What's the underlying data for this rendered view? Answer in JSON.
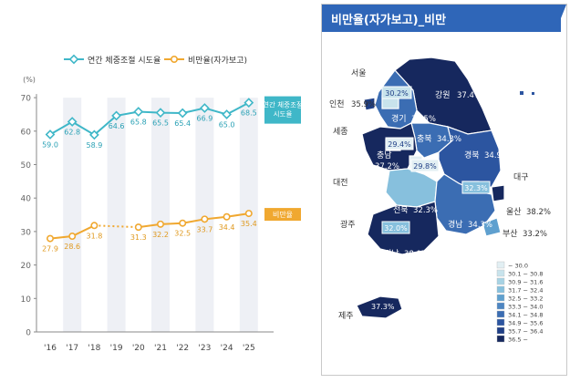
{
  "chart_data": [
    {
      "type": "line",
      "y_unit": "(%)",
      "ylim": [
        0,
        70
      ],
      "yticks": [
        0,
        10,
        20,
        30,
        40,
        50,
        60,
        70
      ],
      "categories": [
        "'16",
        "'17",
        "'18",
        "'19",
        "'20",
        "'21",
        "'22",
        "'23",
        "'24",
        "'25"
      ],
      "shaded_years": [
        "'17",
        "'19",
        "'21",
        "'23",
        "'25"
      ],
      "series": [
        {
          "name": "연간 체중조절 시도율",
          "end_label": "연간 체중조절 시도율",
          "color": "#3fb7c8",
          "values": [
            59.0,
            62.8,
            58.9,
            64.6,
            65.8,
            65.5,
            65.4,
            66.9,
            65.0,
            68.5
          ],
          "labels": [
            "59.0",
            "62.8",
            "58.9",
            "64.6",
            "65.8",
            "65.5",
            "65.4",
            "66.9",
            "65.0",
            "68.5"
          ]
        },
        {
          "name": "비만율(자가보고)",
          "end_label": "비만율",
          "color": "#f0a830",
          "values": [
            27.9,
            28.6,
            31.8,
            null,
            31.3,
            32.2,
            32.5,
            33.7,
            34.4,
            35.4
          ],
          "labels": [
            "27.9",
            "28.6",
            "31.8",
            "",
            "31.3",
            "32.2",
            "32.5",
            "33.7",
            "34.4",
            "35.4"
          ],
          "dotted_gap": [
            "'18",
            "'20"
          ]
        }
      ]
    },
    {
      "type": "choropleth",
      "title": "비만율(자가보고)_비만",
      "regions": [
        {
          "name": "서울",
          "value": "30.2%"
        },
        {
          "name": "인천",
          "value": "35.9%"
        },
        {
          "name": "경기",
          "value": "34.5%"
        },
        {
          "name": "강원",
          "value": "37.4%"
        },
        {
          "name": "세종",
          "value": "29.4%"
        },
        {
          "name": "충북",
          "value": "34.3%"
        },
        {
          "name": "충남",
          "value": "37.2%"
        },
        {
          "name": "대전",
          "value": "29.8%"
        },
        {
          "name": "경북",
          "value": "34.9%"
        },
        {
          "name": "대구",
          "value": "32.3%"
        },
        {
          "name": "전북",
          "value": "32.3%"
        },
        {
          "name": "광주",
          "value": "32.0%"
        },
        {
          "name": "경남",
          "value": "34.3%"
        },
        {
          "name": "울산",
          "value": "38.2%"
        },
        {
          "name": "부산",
          "value": "33.2%"
        },
        {
          "name": "전남",
          "value": "38.0%"
        },
        {
          "name": "제주",
          "value": "37.3%"
        }
      ],
      "legend": [
        {
          "label": "~ 30.0",
          "color": "#e2eff3"
        },
        {
          "label": "30.1 ~ 30.8",
          "color": "#c8e3ec"
        },
        {
          "label": "30.9 ~ 31.6",
          "color": "#a7d3e4"
        },
        {
          "label": "31.7 ~ 32.4",
          "color": "#87c0dd"
        },
        {
          "label": "32.5 ~ 33.2",
          "color": "#5fa0cf"
        },
        {
          "label": "33.3 ~ 34.0",
          "color": "#4d86c2"
        },
        {
          "label": "34.1 ~ 34.8",
          "color": "#3b6db3"
        },
        {
          "label": "34.9 ~ 35.6",
          "color": "#2c55a0"
        },
        {
          "label": "35.7 ~ 36.4",
          "color": "#1f3f86"
        },
        {
          "label": "36.5 ~",
          "color": "#16285e"
        }
      ]
    }
  ]
}
